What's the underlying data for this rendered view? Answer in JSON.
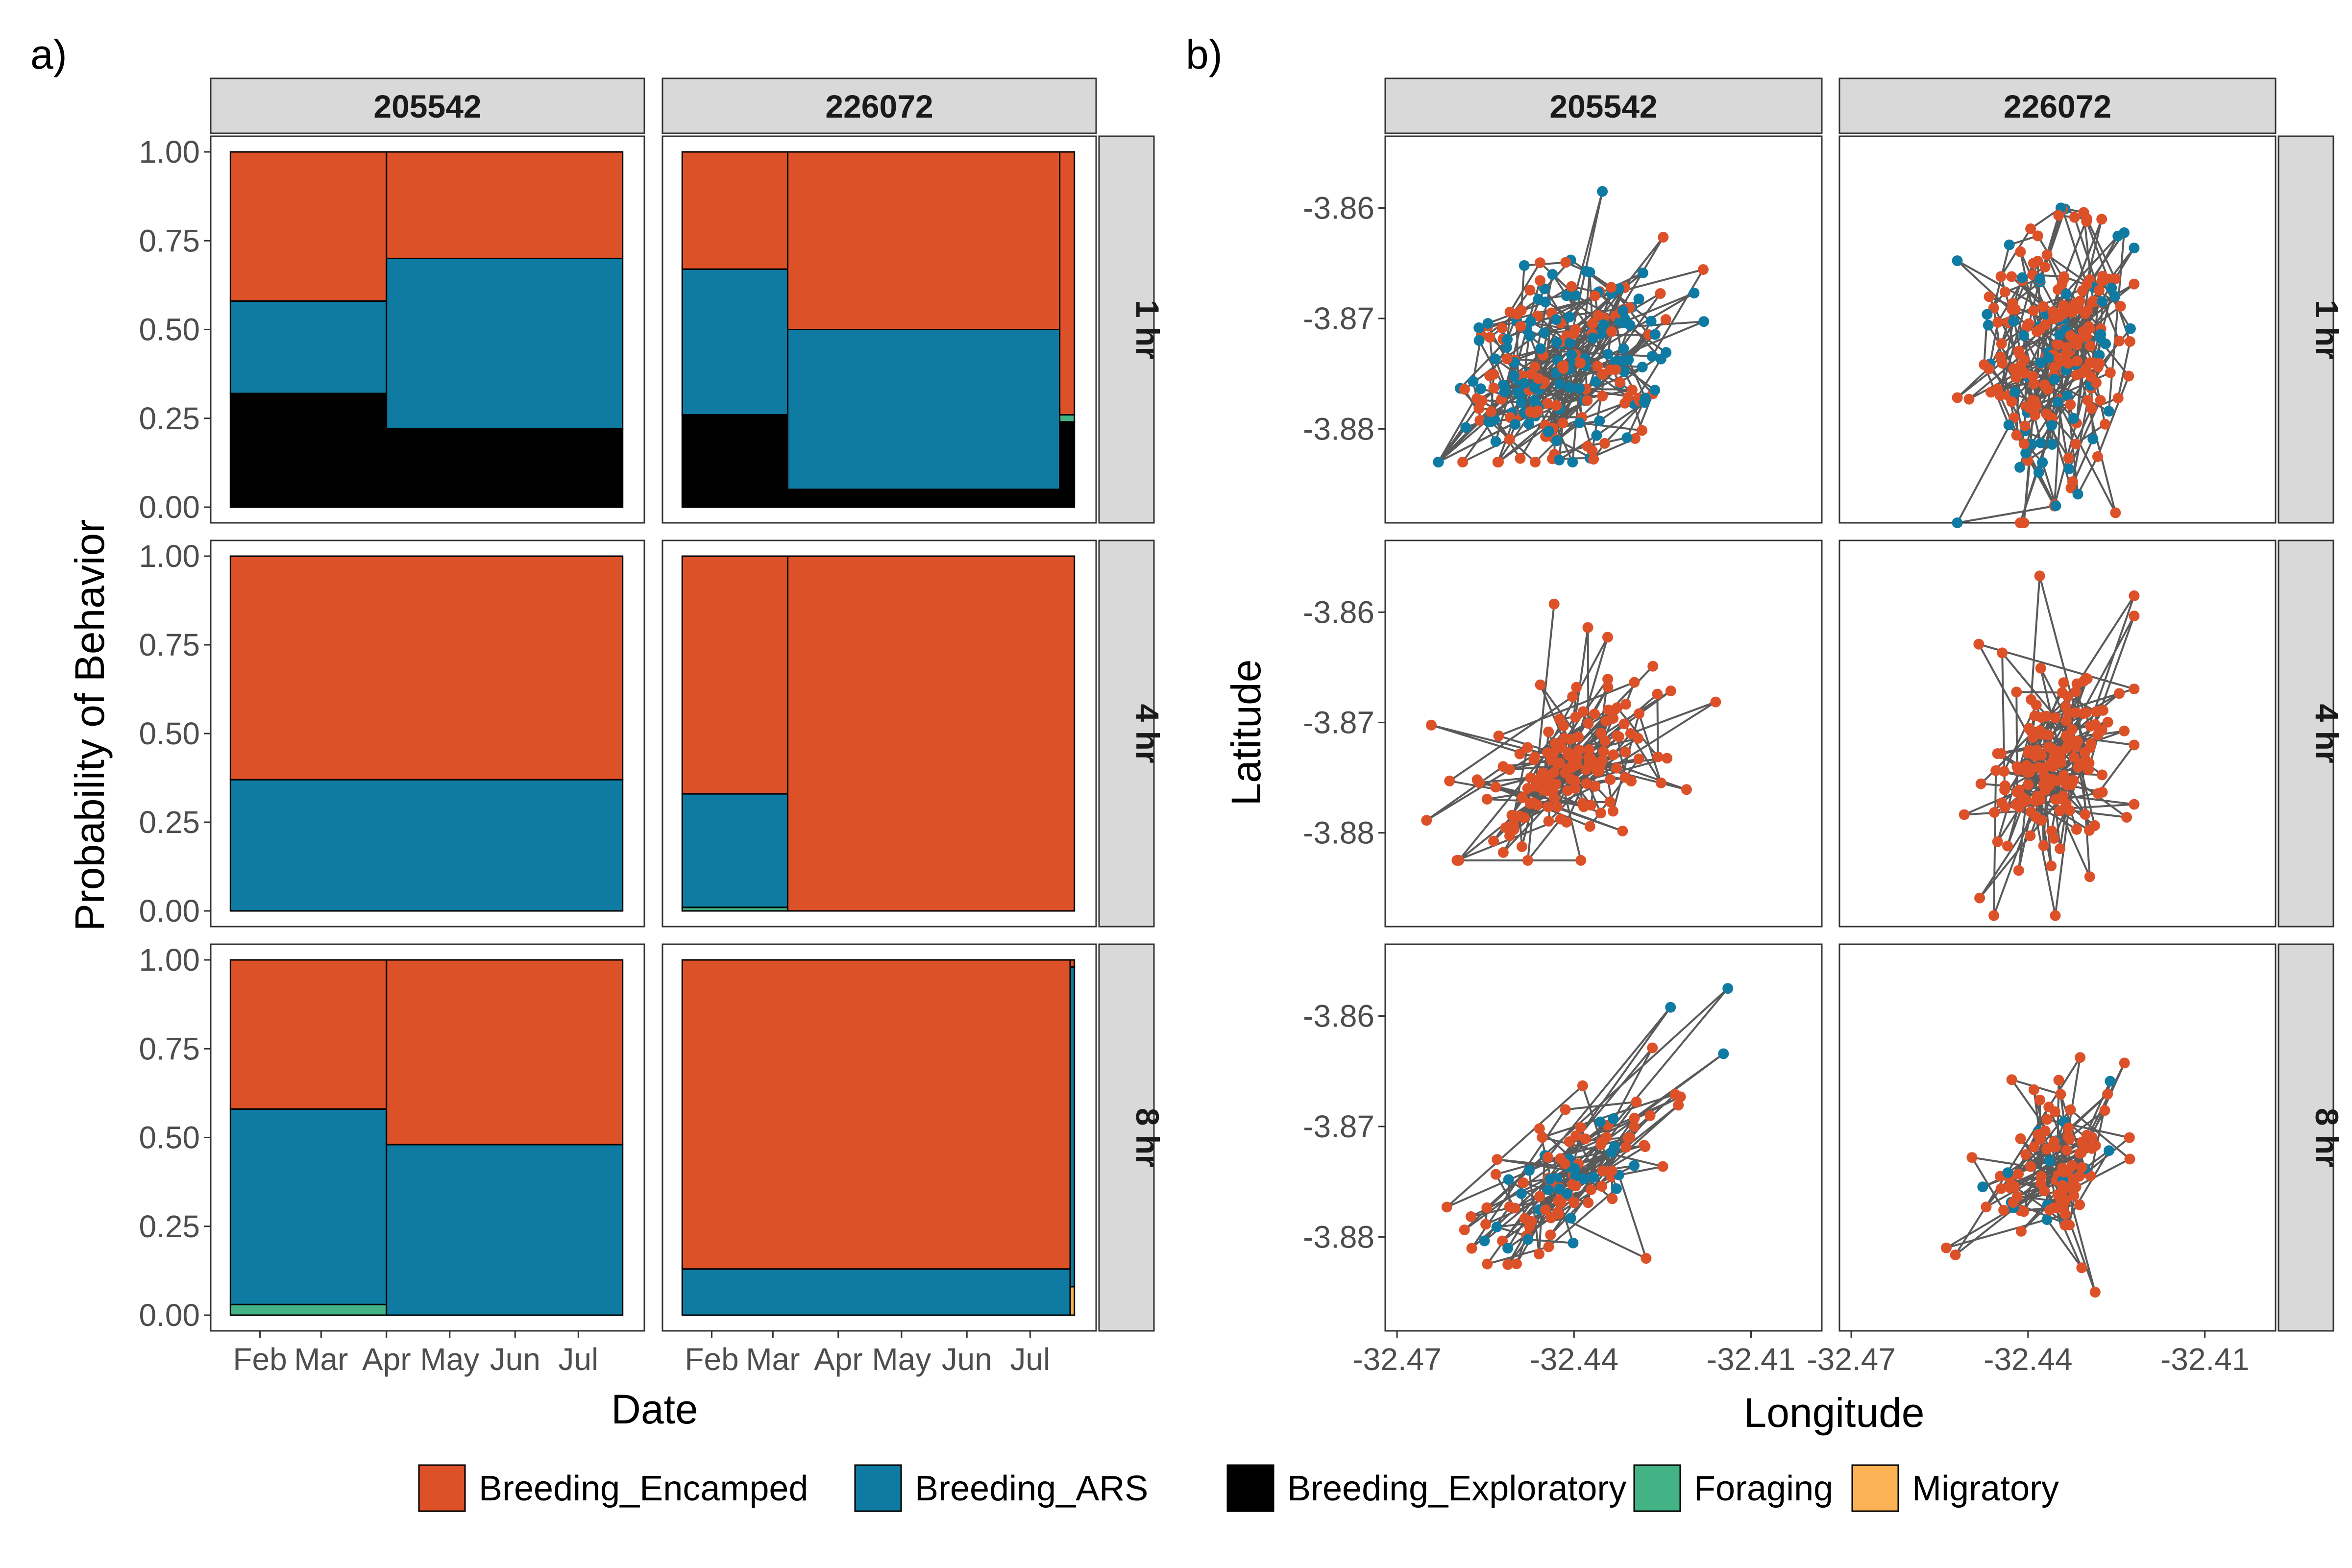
{
  "panel_labels": {
    "a": "a)",
    "b": "b)"
  },
  "chart_data": [
    {
      "type": "area",
      "subtype": "stacked-step-area",
      "panel": "a)",
      "title": "",
      "xlabel": "Date",
      "ylabel": "Probability of Behavior",
      "ylim": [
        0,
        1
      ],
      "x_ticks": [
        "Feb",
        "Mar",
        "Apr",
        "May",
        "Jun",
        "Jul"
      ],
      "y_ticks": [
        "0.00",
        "0.25",
        "0.50",
        "0.75",
        "1.00"
      ],
      "column_facets": [
        "205542",
        "226072"
      ],
      "row_facets": [
        "1 hr",
        "4 hr",
        "8 hr"
      ],
      "behaviors": [
        "Breeding_Exploratory",
        "Foraging",
        "Migratory",
        "Breeding_ARS",
        "Breeding_Encamped"
      ],
      "panels": [
        {
          "id": "205542",
          "res": "1 hr",
          "segments": [
            {
              "from": "2020-01-18",
              "to": "2020-04-01",
              "Breeding_Exploratory": 0.32,
              "Foraging": 0.0,
              "Migratory": 0.0,
              "Breeding_ARS": 0.26,
              "Breeding_Encamped": 0.42
            },
            {
              "from": "2020-04-01",
              "to": "2020-07-22",
              "Breeding_Exploratory": 0.22,
              "Foraging": 0.0,
              "Migratory": 0.0,
              "Breeding_ARS": 0.48,
              "Breeding_Encamped": 0.3
            }
          ]
        },
        {
          "id": "226072",
          "res": "1 hr",
          "segments": [
            {
              "from": "2020-01-18",
              "to": "2020-03-08",
              "Breeding_Exploratory": 0.26,
              "Foraging": 0.0,
              "Migratory": 0.0,
              "Breeding_ARS": 0.41,
              "Breeding_Encamped": 0.33
            },
            {
              "from": "2020-03-08",
              "to": "2020-07-15",
              "Breeding_Exploratory": 0.05,
              "Foraging": 0.0,
              "Migratory": 0.0,
              "Breeding_ARS": 0.45,
              "Breeding_Encamped": 0.5
            },
            {
              "from": "2020-07-15",
              "to": "2020-07-22",
              "Breeding_Exploratory": 0.24,
              "Foraging": 0.02,
              "Migratory": 0.0,
              "Breeding_ARS": 0.0,
              "Breeding_Encamped": 0.74
            }
          ]
        },
        {
          "id": "205542",
          "res": "4 hr",
          "segments": [
            {
              "from": "2020-01-18",
              "to": "2020-07-22",
              "Breeding_Exploratory": 0.0,
              "Foraging": 0.0,
              "Migratory": 0.0,
              "Breeding_ARS": 0.37,
              "Breeding_Encamped": 0.63
            }
          ]
        },
        {
          "id": "226072",
          "res": "4 hr",
          "segments": [
            {
              "from": "2020-01-18",
              "to": "2020-03-08",
              "Breeding_Exploratory": 0.0,
              "Foraging": 0.01,
              "Migratory": 0.0,
              "Breeding_ARS": 0.32,
              "Breeding_Encamped": 0.67
            },
            {
              "from": "2020-03-08",
              "to": "2020-07-22",
              "Breeding_Exploratory": 0.0,
              "Foraging": 0.0,
              "Migratory": 0.0,
              "Breeding_ARS": 0.0,
              "Breeding_Encamped": 1.0
            }
          ]
        },
        {
          "id": "205542",
          "res": "8 hr",
          "segments": [
            {
              "from": "2020-01-18",
              "to": "2020-04-01",
              "Breeding_Exploratory": 0.0,
              "Foraging": 0.03,
              "Migratory": 0.0,
              "Breeding_ARS": 0.55,
              "Breeding_Encamped": 0.42
            },
            {
              "from": "2020-04-01",
              "to": "2020-07-22",
              "Breeding_Exploratory": 0.0,
              "Foraging": 0.0,
              "Migratory": 0.0,
              "Breeding_ARS": 0.48,
              "Breeding_Encamped": 0.52
            }
          ]
        },
        {
          "id": "226072",
          "res": "8 hr",
          "segments": [
            {
              "from": "2020-01-18",
              "to": "2020-07-20",
              "Breeding_Exploratory": 0.0,
              "Foraging": 0.0,
              "Migratory": 0.0,
              "Breeding_ARS": 0.13,
              "Breeding_Encamped": 0.87
            },
            {
              "from": "2020-07-20",
              "to": "2020-07-22",
              "Breeding_Exploratory": 0.0,
              "Foraging": 0.0,
              "Migratory": 0.08,
              "Breeding_ARS": 0.9,
              "Breeding_Encamped": 0.02
            }
          ]
        }
      ]
    },
    {
      "type": "scatter",
      "subtype": "track-map",
      "panel": "b)",
      "title": "",
      "xlabel": "Longitude",
      "ylabel": "Latitude",
      "xlim": [
        -32.472,
        -32.398
      ],
      "ylim": [
        -3.8885,
        -3.8535
      ],
      "x_ticks": [
        "-32.47",
        "-32.44",
        "-32.41"
      ],
      "y_ticks": [
        "-3.86",
        "-3.87",
        "-3.88"
      ],
      "column_facets": [
        "205542",
        "226072"
      ],
      "row_facets": [
        "1 hr",
        "4 hr",
        "8 hr"
      ],
      "point_colors": "behavior",
      "panels": [
        {
          "id": "205542",
          "res": "1 hr",
          "center": [
            -32.442,
            -3.8745
          ],
          "spread": [
            0.0085,
            0.0032
          ],
          "dominant": "Breeding_ARS",
          "mix": 0.55,
          "n": 230,
          "style": "loops",
          "extent": {
            "lon": [
              -32.463,
              -32.418
            ],
            "lat": [
              -3.883,
              -3.8585
            ]
          }
        },
        {
          "id": "226072",
          "res": "1 hr",
          "center": [
            -32.435,
            -3.873
          ],
          "spread": [
            0.0045,
            0.0038
          ],
          "dominant": "Breeding_Encamped",
          "mix": 0.8,
          "n": 230,
          "style": "loops",
          "extent": {
            "lon": [
              -32.452,
              -32.422
            ],
            "lat": [
              -3.8885,
              -3.855
            ]
          }
        },
        {
          "id": "205542",
          "res": "4 hr",
          "center": [
            -32.441,
            -3.8745
          ],
          "spread": [
            0.007,
            0.0028
          ],
          "dominant": "Breeding_Encamped",
          "mix": 1.0,
          "n": 150,
          "style": "jump",
          "extent": {
            "lon": [
              -32.465,
              -32.416
            ],
            "lat": [
              -3.8825,
              -3.8565
            ]
          }
        },
        {
          "id": "226072",
          "res": "4 hr",
          "center": [
            -32.4355,
            -3.8735
          ],
          "spread": [
            0.0045,
            0.0036
          ],
          "dominant": "Breeding_Encamped",
          "mix": 1.0,
          "n": 150,
          "style": "jump",
          "extent": {
            "lon": [
              -32.452,
              -32.422
            ],
            "lat": [
              -3.8875,
              -3.8555
            ]
          }
        },
        {
          "id": "205542",
          "res": "8 hr",
          "center": [
            -32.442,
            -3.8745
          ],
          "spread": [
            0.0075,
            0.0028
          ],
          "dominant": "Breeding_Encamped",
          "mix": 0.72,
          "n": 110,
          "style": "jump",
          "extent": {
            "lon": [
              -32.465,
              -32.412
            ],
            "lat": [
              -3.8825,
              -3.8575
            ]
          }
        },
        {
          "id": "226072",
          "res": "8 hr",
          "center": [
            -32.4355,
            -3.8735
          ],
          "spread": [
            0.004,
            0.003
          ],
          "dominant": "Breeding_Encamped",
          "mix": 0.88,
          "n": 110,
          "style": "jump",
          "extent": {
            "lon": [
              -32.455,
              -32.422
            ],
            "lat": [
              -3.885,
              -3.8535
            ]
          }
        }
      ]
    }
  ],
  "legend": [
    {
      "label": "Breeding_Encamped",
      "color": "#DD5129"
    },
    {
      "label": "Breeding_ARS",
      "color": "#0F7BA2"
    },
    {
      "label": "Breeding_Exploratory",
      "color": "#000000"
    },
    {
      "label": "Foraging",
      "color": "#43B284"
    },
    {
      "label": "Migratory",
      "color": "#FAB255"
    }
  ],
  "colors": {
    "Breeding_Encamped": "#DD5129",
    "Breeding_ARS": "#0F7BA2",
    "Breeding_Exploratory": "#000000",
    "Foraging": "#43B284",
    "Migratory": "#FAB255",
    "track_line": "#3d3d3d",
    "strip_fill": "#d9d9d9",
    "panel_border": "#333333"
  }
}
